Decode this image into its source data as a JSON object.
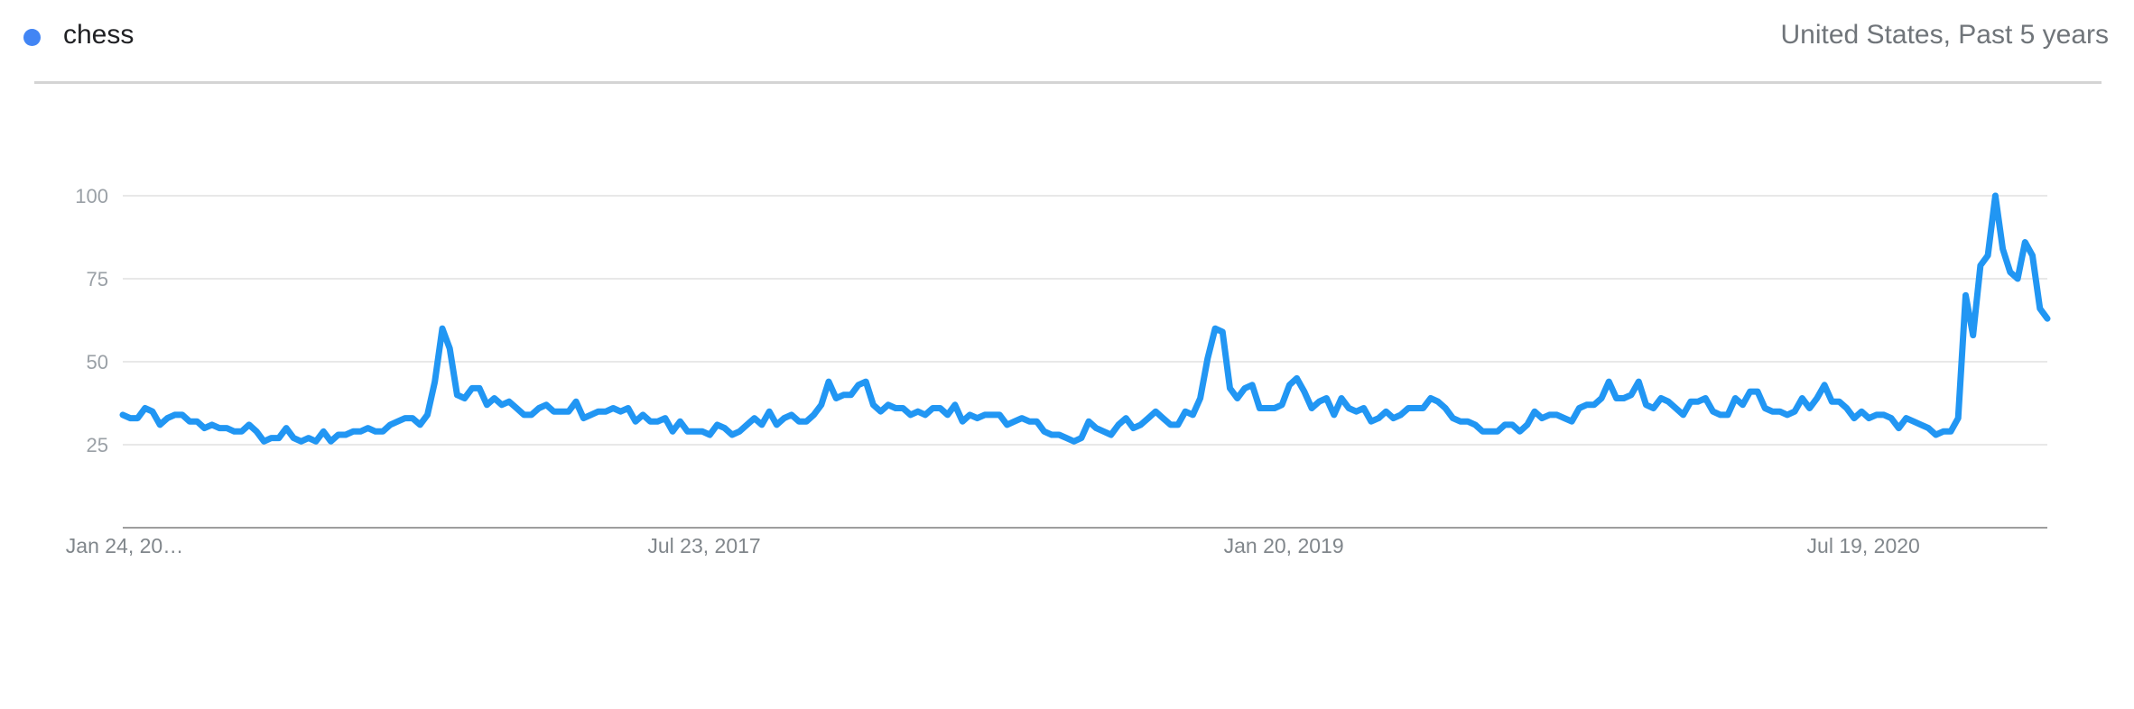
{
  "header": {
    "term": "chess",
    "region_period": "United States, Past 5 years"
  },
  "colors": {
    "series": "#2196f3",
    "legend_dot": "#4285f4",
    "grid": "#e0e0e0",
    "axis": "#9e9e9e"
  },
  "chart_data": {
    "type": "line",
    "title": "",
    "xlabel": "",
    "ylabel": "",
    "ylim": [
      0,
      100
    ],
    "grid": true,
    "yticks": [
      25,
      50,
      75,
      100
    ],
    "x_tick_labels": [
      "Jan 24, 20…",
      "Jul 23, 2017",
      "Jan 20, 2019",
      "Jul 19, 2020"
    ],
    "x_tick_index": [
      0,
      78,
      156,
      234
    ],
    "series": [
      {
        "name": "chess",
        "values": [
          34,
          33,
          33,
          36,
          35,
          31,
          33,
          34,
          34,
          32,
          32,
          30,
          31,
          30,
          30,
          29,
          29,
          31,
          29,
          26,
          27,
          27,
          30,
          27,
          26,
          27,
          26,
          29,
          26,
          28,
          28,
          29,
          29,
          30,
          29,
          29,
          31,
          32,
          33,
          33,
          31,
          34,
          44,
          60,
          54,
          40,
          39,
          42,
          42,
          37,
          39,
          37,
          38,
          36,
          34,
          34,
          36,
          37,
          35,
          35,
          35,
          38,
          33,
          34,
          35,
          35,
          36,
          35,
          36,
          32,
          34,
          32,
          32,
          33,
          29,
          32,
          29,
          29,
          29,
          28,
          31,
          30,
          28,
          29,
          31,
          33,
          31,
          35,
          31,
          33,
          34,
          32,
          32,
          34,
          37,
          44,
          39,
          40,
          40,
          43,
          44,
          37,
          35,
          37,
          36,
          36,
          34,
          35,
          34,
          36,
          36,
          34,
          37,
          32,
          34,
          33,
          34,
          34,
          34,
          31,
          32,
          33,
          32,
          32,
          29,
          28,
          28,
          27,
          26,
          27,
          32,
          30,
          29,
          28,
          31,
          33,
          30,
          31,
          33,
          35,
          33,
          31,
          31,
          35,
          34,
          39,
          51,
          60,
          59,
          42,
          39,
          42,
          43,
          36,
          36,
          36,
          37,
          43,
          45,
          41,
          36,
          38,
          39,
          34,
          39,
          36,
          35,
          36,
          32,
          33,
          35,
          33,
          34,
          36,
          36,
          36,
          39,
          38,
          36,
          33,
          32,
          32,
          31,
          29,
          29,
          29,
          31,
          31,
          29,
          31,
          35,
          33,
          34,
          34,
          33,
          32,
          36,
          37,
          37,
          39,
          44,
          39,
          39,
          40,
          44,
          37,
          36,
          39,
          38,
          36,
          34,
          38,
          38,
          39,
          35,
          34,
          34,
          39,
          37,
          41,
          41,
          36,
          35,
          35,
          34,
          35,
          39,
          36,
          39,
          43,
          38,
          38,
          36,
          33,
          35,
          33,
          34,
          34,
          33,
          30,
          33,
          32,
          31,
          30,
          28,
          29,
          29,
          33,
          70,
          58,
          79,
          82,
          100,
          84,
          77,
          75,
          86,
          82,
          66,
          63
        ]
      }
    ]
  }
}
